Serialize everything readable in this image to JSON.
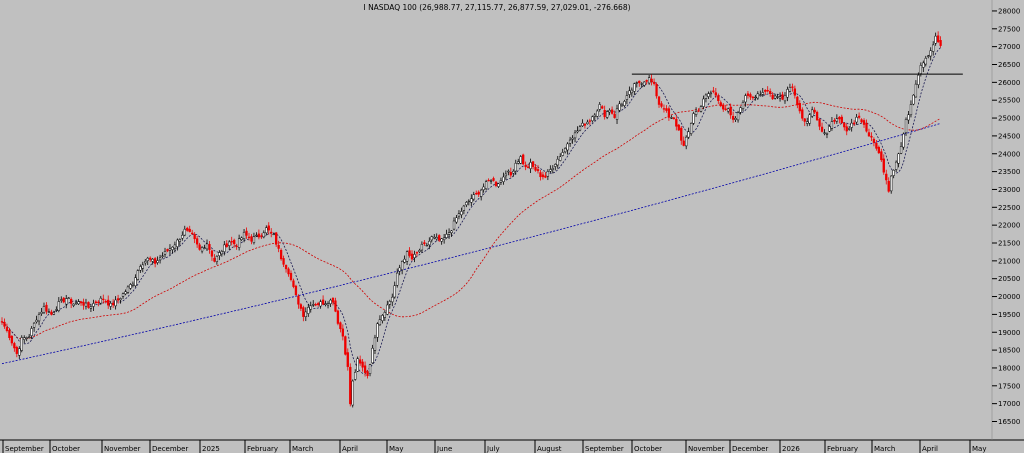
{
  "chart_data": {
    "type": "candlestick",
    "title": "I NASDAQ 100 (26,988.77, 27,115.77, 26,877.59, 27,029.01, -276.668)",
    "ylim": [
      16250,
      28000
    ],
    "y_ticks": [
      16500,
      17000,
      17500,
      18000,
      18500,
      19000,
      19500,
      20000,
      20500,
      21000,
      21500,
      22000,
      22500,
      23000,
      23500,
      24000,
      24500,
      25000,
      25500,
      26000,
      26500,
      27000,
      27500,
      28000
    ],
    "x_labels": [
      "September",
      "October",
      "November",
      "December",
      "2025",
      "February",
      "March",
      "April",
      "May",
      "June",
      "July",
      "August",
      "September",
      "October",
      "November",
      "December",
      "2026",
      "February",
      "March",
      "April",
      "May"
    ],
    "anchors": [
      [
        0,
        19300
      ],
      [
        3,
        18900
      ],
      [
        6,
        18400
      ],
      [
        8,
        18800
      ],
      [
        11,
        18900
      ],
      [
        14,
        19400
      ],
      [
        17,
        19700
      ],
      [
        20,
        19500
      ],
      [
        23,
        19800
      ],
      [
        26,
        19950
      ],
      [
        29,
        19800
      ],
      [
        32,
        19850
      ],
      [
        35,
        19700
      ],
      [
        38,
        19850
      ],
      [
        41,
        19950
      ],
      [
        44,
        19750
      ],
      [
        47,
        19900
      ],
      [
        50,
        20150
      ],
      [
        53,
        20400
      ],
      [
        56,
        20900
      ],
      [
        59,
        21050
      ],
      [
        62,
        20950
      ],
      [
        65,
        21150
      ],
      [
        68,
        21350
      ],
      [
        71,
        21550
      ],
      [
        74,
        21850
      ],
      [
        77,
        21700
      ],
      [
        80,
        21300
      ],
      [
        83,
        21500
      ],
      [
        86,
        21000
      ],
      [
        89,
        21300
      ],
      [
        92,
        21550
      ],
      [
        95,
        21450
      ],
      [
        98,
        21750
      ],
      [
        101,
        21600
      ],
      [
        104,
        21700
      ],
      [
        107,
        21900
      ],
      [
        110,
        21700
      ],
      [
        113,
        21100
      ],
      [
        116,
        20700
      ],
      [
        119,
        20000
      ],
      [
        122,
        19500
      ],
      [
        125,
        19800
      ],
      [
        128,
        19800
      ],
      [
        131,
        19850
      ],
      [
        134,
        19900
      ],
      [
        136,
        19300
      ],
      [
        138,
        18900
      ],
      [
        140,
        18000
      ],
      [
        141,
        17000
      ],
      [
        142,
        17600
      ],
      [
        144,
        18200
      ],
      [
        146,
        18000
      ],
      [
        148,
        17800
      ],
      [
        150,
        18500
      ],
      [
        152,
        19300
      ],
      [
        154,
        19500
      ],
      [
        156,
        19750
      ],
      [
        158,
        20000
      ],
      [
        160,
        20600
      ],
      [
        162,
        21000
      ],
      [
        164,
        21200
      ],
      [
        166,
        21050
      ],
      [
        168,
        21200
      ],
      [
        170,
        21400
      ],
      [
        172,
        21450
      ],
      [
        174,
        21650
      ],
      [
        176,
        21600
      ],
      [
        178,
        21550
      ],
      [
        180,
        21700
      ],
      [
        182,
        21900
      ],
      [
        184,
        22200
      ],
      [
        186,
        22400
      ],
      [
        188,
        22600
      ],
      [
        190,
        22750
      ],
      [
        192,
        22850
      ],
      [
        194,
        23000
      ],
      [
        196,
        23150
      ],
      [
        198,
        23300
      ],
      [
        200,
        23150
      ],
      [
        202,
        23250
      ],
      [
        204,
        23500
      ],
      [
        206,
        23400
      ],
      [
        208,
        23750
      ],
      [
        210,
        23900
      ],
      [
        212,
        23600
      ],
      [
        214,
        23700
      ],
      [
        216,
        23550
      ],
      [
        218,
        23400
      ],
      [
        220,
        23350
      ],
      [
        222,
        23550
      ],
      [
        224,
        23750
      ],
      [
        226,
        23950
      ],
      [
        228,
        24150
      ],
      [
        230,
        24450
      ],
      [
        232,
        24550
      ],
      [
        234,
        24750
      ],
      [
        236,
        24850
      ],
      [
        238,
        24950
      ],
      [
        240,
        25150
      ],
      [
        242,
        25350
      ],
      [
        244,
        25100
      ],
      [
        246,
        25250
      ],
      [
        248,
        25050
      ],
      [
        250,
        25400
      ],
      [
        252,
        25450
      ],
      [
        254,
        25700
      ],
      [
        256,
        25900
      ],
      [
        258,
        26000
      ],
      [
        260,
        26050
      ],
      [
        262,
        26100
      ],
      [
        264,
        25900
      ],
      [
        266,
        25400
      ],
      [
        268,
        25300
      ],
      [
        270,
        25000
      ],
      [
        272,
        24950
      ],
      [
        274,
        24650
      ],
      [
        276,
        24200
      ],
      [
        278,
        24600
      ],
      [
        280,
        25150
      ],
      [
        282,
        25200
      ],
      [
        284,
        25550
      ],
      [
        286,
        25650
      ],
      [
        288,
        25750
      ],
      [
        290,
        25500
      ],
      [
        292,
        25300
      ],
      [
        294,
        25200
      ],
      [
        296,
        24900
      ],
      [
        298,
        25100
      ],
      [
        300,
        25500
      ],
      [
        302,
        25650
      ],
      [
        304,
        25600
      ],
      [
        306,
        25700
      ],
      [
        308,
        25650
      ],
      [
        310,
        25750
      ],
      [
        312,
        25600
      ],
      [
        314,
        25650
      ],
      [
        316,
        25550
      ],
      [
        318,
        25800
      ],
      [
        320,
        25900
      ],
      [
        322,
        25350
      ],
      [
        324,
        25050
      ],
      [
        326,
        24900
      ],
      [
        328,
        25300
      ],
      [
        330,
        25000
      ],
      [
        332,
        24650
      ],
      [
        334,
        24550
      ],
      [
        336,
        24850
      ],
      [
        338,
        25050
      ],
      [
        340,
        24800
      ],
      [
        342,
        24600
      ],
      [
        344,
        24800
      ],
      [
        346,
        25050
      ],
      [
        348,
        24950
      ],
      [
        350,
        24650
      ],
      [
        352,
        24400
      ],
      [
        354,
        24200
      ],
      [
        356,
        23800
      ],
      [
        358,
        23300
      ],
      [
        359,
        23000
      ],
      [
        360,
        23400
      ],
      [
        362,
        23800
      ],
      [
        364,
        24200
      ],
      [
        366,
        24900
      ],
      [
        368,
        25400
      ],
      [
        370,
        26000
      ],
      [
        372,
        26500
      ],
      [
        374,
        26700
      ],
      [
        376,
        26900
      ],
      [
        378,
        27250
      ],
      [
        380,
        27029.01
      ]
    ],
    "series": [
      {
        "name": "",
        "style": "dashed",
        "color": "#0000aa",
        "start_value": 18120,
        "end_value": 24850,
        "curve": "exp"
      },
      {
        "name": "",
        "style": "dashed",
        "color": "#d00000",
        "type": "sma",
        "period": 50
      },
      {
        "name": "",
        "style": "dashed",
        "color": "#1a1a50",
        "type": "sma",
        "period": 7
      }
    ],
    "resistance_line": {
      "value": 26230,
      "start_index": 255,
      "end_index": 389,
      "color": "#000000"
    },
    "colors": {
      "up": "#000000",
      "down": "#ee0000",
      "background": "#c0c0c0"
    }
  }
}
